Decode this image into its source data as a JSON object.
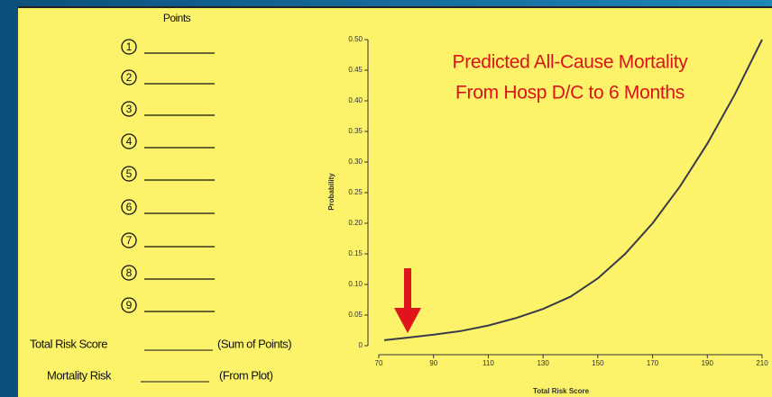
{
  "form": {
    "points_header": "Points",
    "items": [
      "1",
      "2",
      "3",
      "4",
      "5",
      "6",
      "7",
      "8",
      "9"
    ],
    "total_label": "Total Risk Score",
    "total_note": "(Sum of Points)",
    "mortality_label": "Mortality Risk",
    "mortality_note": "(From Plot)"
  },
  "chart_data": {
    "type": "line",
    "annotations": [
      "Predicted All-Cause Mortality",
      "From Hosp D/C to 6 Months"
    ],
    "x_label": "Total Risk Score",
    "y_label": "Probability",
    "x": [
      72,
      80,
      90,
      100,
      110,
      120,
      130,
      140,
      150,
      160,
      170,
      180,
      190,
      200,
      210
    ],
    "values": [
      0.009,
      0.013,
      0.018,
      0.024,
      0.033,
      0.045,
      0.06,
      0.08,
      0.11,
      0.15,
      0.2,
      0.26,
      0.33,
      0.41,
      0.5
    ],
    "color": "#3a3a4a",
    "xlim": [
      70,
      210
    ],
    "ylim": [
      0,
      0.5
    ],
    "xticks": [
      70,
      90,
      110,
      130,
      150,
      170,
      190,
      210
    ],
    "yticks": [
      0,
      0.05,
      {
        "value": 0.1,
        "label": "0.10"
      },
      0.15,
      {
        "value": 0.2,
        "label": "0.20"
      },
      0.25,
      {
        "value": 0.3,
        "label": "0.30"
      },
      0.35,
      {
        "value": 0.4,
        "label": "0.40"
      },
      0.45,
      {
        "value": 0.5,
        "label": "0.50"
      }
    ]
  }
}
